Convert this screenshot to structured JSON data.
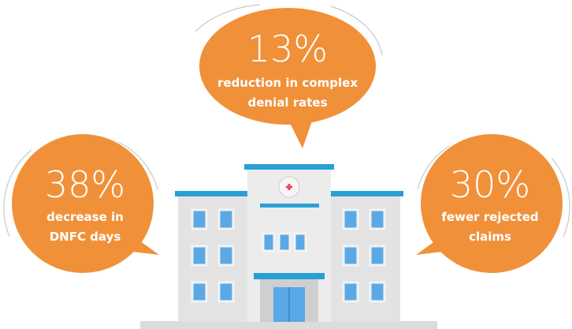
{
  "callouts": [
    {
      "stat": "13%",
      "lines": [
        "reduction in complex",
        "denial rates"
      ]
    },
    {
      "stat": "38%",
      "lines": [
        "decrease in",
        "DNFC days"
      ]
    },
    {
      "stat": "30%",
      "lines": [
        "fewer rejected",
        "claims"
      ]
    }
  ]
}
